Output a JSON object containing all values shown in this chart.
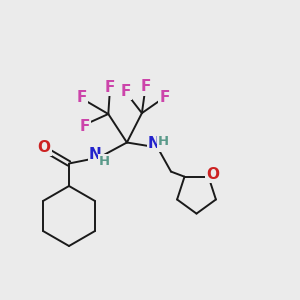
{
  "bg_color": "#ebebeb",
  "bond_color": "#1a1a1a",
  "bond_width": 1.4,
  "atom_colors": {
    "N": "#2222cc",
    "H": "#5a9a8a",
    "O": "#cc2222",
    "F": "#cc44aa"
  },
  "font_size_atom": 11,
  "font_size_H": 9.5
}
